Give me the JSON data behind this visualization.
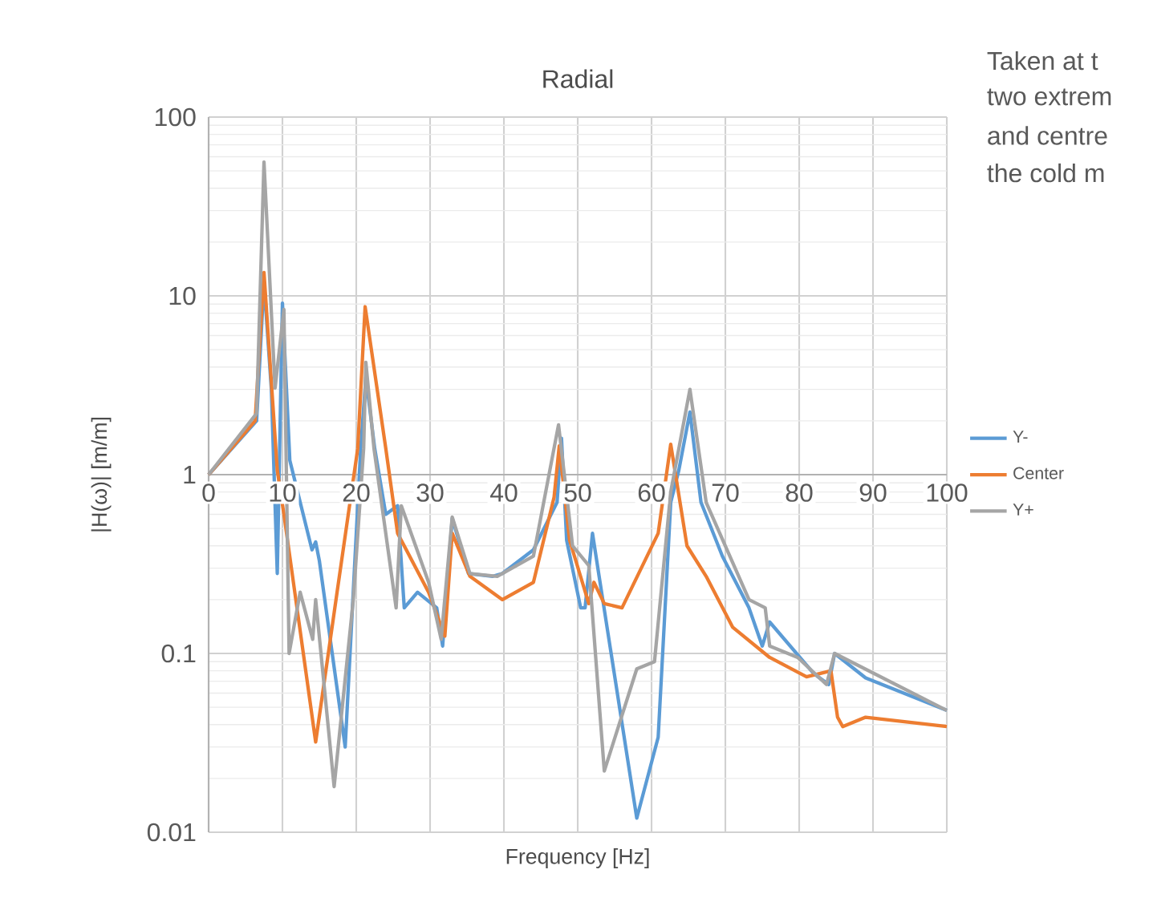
{
  "chart_data": {
    "type": "line",
    "title": "Radial",
    "xlabel": "Frequency [Hz]",
    "ylabel": "|H(ω)| [m/m]",
    "annotations": [
      "Taken at t",
      "two extrem",
      "and centre",
      "the cold m"
    ],
    "xlim": [
      0,
      100
    ],
    "xticks": [
      0,
      10,
      20,
      30,
      40,
      50,
      60,
      70,
      80,
      90,
      100
    ],
    "ylim": [
      0.01,
      100
    ],
    "yticks": [
      0.01,
      0.1,
      1,
      10,
      100
    ],
    "log": "y",
    "grid": true,
    "legend": "right",
    "series": [
      {
        "name": "Y-",
        "color": "#5b9bd5",
        "x": [
          0,
          6.5,
          7.5,
          8.5,
          9.3,
          10,
          11,
          14,
          14.5,
          15,
          18.5,
          20.6,
          21.3,
          22.5,
          24,
          25.6,
          26.5,
          28.3,
          30.9,
          31.7,
          33,
          35.2,
          38.5,
          39.8,
          44,
          47.2,
          47.8,
          48.5,
          50.4,
          51,
          52,
          52.9,
          58,
          60.9,
          62.6,
          63.7,
          65.2,
          66.7,
          69.6,
          73.2,
          75,
          76,
          82,
          84,
          84.8,
          89,
          100
        ],
        "values": [
          1,
          2,
          12,
          3,
          0.28,
          9.1,
          1.2,
          0.38,
          0.42,
          0.33,
          0.03,
          1.4,
          3.5,
          1.4,
          0.6,
          0.67,
          0.18,
          0.22,
          0.18,
          0.11,
          0.57,
          0.28,
          0.27,
          0.28,
          0.38,
          0.7,
          1.6,
          0.43,
          0.18,
          0.18,
          0.47,
          0.27,
          0.012,
          0.034,
          0.7,
          1.06,
          2.24,
          0.7,
          0.35,
          0.18,
          0.11,
          0.15,
          0.077,
          0.067,
          0.1,
          0.073,
          0.048
        ]
      },
      {
        "name": "Center",
        "color": "#ed7d31",
        "x": [
          0,
          6.3,
          7.5,
          9.3,
          10.2,
          14.5,
          17.4,
          20.2,
          21.2,
          24,
          25.6,
          29.8,
          32,
          33,
          35.4,
          39.8,
          44,
          46.8,
          47.5,
          48.9,
          51.5,
          52.2,
          53.6,
          56,
          60.9,
          62.6,
          64.8,
          67.4,
          71,
          76,
          81,
          84.3,
          85.2,
          85.9,
          89,
          100
        ],
        "values": [
          1,
          2,
          13.5,
          1.06,
          0.6,
          0.032,
          0.22,
          1.4,
          8.7,
          1.4,
          0.47,
          0.22,
          0.125,
          0.47,
          0.27,
          0.2,
          0.25,
          0.75,
          1.45,
          0.43,
          0.19,
          0.25,
          0.19,
          0.18,
          0.47,
          1.48,
          0.4,
          0.27,
          0.14,
          0.095,
          0.074,
          0.08,
          0.044,
          0.039,
          0.044,
          0.039
        ]
      },
      {
        "name": "Y+",
        "color": "#a5a5a5",
        "x": [
          0,
          6.5,
          7.5,
          9,
          10.2,
          10.9,
          12.4,
          14.1,
          14.5,
          17,
          19.6,
          21,
          21.3,
          22.4,
          25.4,
          26.1,
          29.8,
          31.5,
          33,
          35.4,
          39.1,
          44,
          47.4,
          49.3,
          51.5,
          53.6,
          58,
          60.4,
          62.6,
          65.2,
          67.4,
          73.2,
          75.4,
          76,
          79.8,
          83.7,
          84.8,
          100
        ],
        "values": [
          1,
          2.2,
          56,
          3.05,
          8.4,
          0.1,
          0.22,
          0.12,
          0.2,
          0.018,
          0.2,
          1.4,
          4.25,
          1.4,
          0.18,
          0.67,
          0.25,
          0.12,
          0.58,
          0.28,
          0.27,
          0.35,
          1.9,
          0.4,
          0.31,
          0.022,
          0.082,
          0.09,
          0.8,
          3.0,
          0.7,
          0.2,
          0.18,
          0.11,
          0.095,
          0.067,
          0.1,
          0.048
        ]
      }
    ]
  }
}
